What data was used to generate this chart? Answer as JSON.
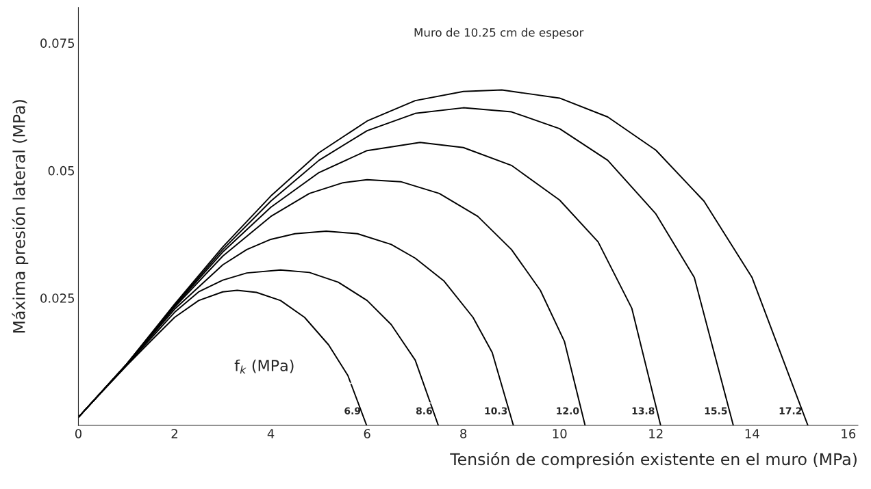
{
  "chart_data": {
    "type": "line",
    "xlabel": "Tensión de compresión existente en el muro (MPa)",
    "ylabel": "Máxima presión lateral (MPa)",
    "annotations": [
      "Muro de 10.25 cm de espesor",
      "f$_{k}$ (MPa)"
    ],
    "xlim": [
      0,
      16.2
    ],
    "ylim": [
      0,
      0.082
    ],
    "xticks": [
      0,
      2,
      4,
      6,
      8,
      10,
      12,
      14,
      16
    ],
    "yticks": [
      0.025,
      0.05,
      0.075
    ],
    "grid": false,
    "legend": false,
    "marker": "none",
    "line_style": "solid",
    "series": [
      {
        "name": "6.9",
        "color": "#000000",
        "x": [
          0,
          0.5,
          1,
          1.5,
          2,
          2.5,
          3,
          3.3,
          3.7,
          4.2,
          4.7,
          5.2,
          5.6,
          5.99
        ],
        "values": [
          0.0016,
          0.0067,
          0.0117,
          0.0165,
          0.0212,
          0.0245,
          0.0262,
          0.0265,
          0.0261,
          0.0245,
          0.0212,
          0.0158,
          0.0098,
          0
        ]
      },
      {
        "name": "8.6",
        "color": "#000000",
        "x": [
          0,
          1,
          2,
          2.5,
          3,
          3.5,
          4.2,
          4.8,
          5.4,
          6,
          6.5,
          7,
          7.48
        ],
        "values": [
          0.0016,
          0.0118,
          0.0222,
          0.0262,
          0.0285,
          0.0299,
          0.0305,
          0.03,
          0.0281,
          0.0245,
          0.0198,
          0.0128,
          0
        ]
      },
      {
        "name": "10.3",
        "color": "#000000",
        "x": [
          0,
          1,
          2,
          3,
          3.5,
          4,
          4.5,
          5.15,
          5.8,
          6.5,
          7,
          7.6,
          8.2,
          8.6,
          9.04
        ],
        "values": [
          0.0016,
          0.0119,
          0.0228,
          0.0315,
          0.0345,
          0.0365,
          0.0376,
          0.0381,
          0.0376,
          0.0355,
          0.0328,
          0.0283,
          0.0212,
          0.0143,
          0
        ]
      },
      {
        "name": "12.0",
        "color": "#000000",
        "x": [
          0,
          1,
          2,
          3,
          4,
          4.8,
          5.5,
          6,
          6.7,
          7.5,
          8.3,
          9,
          9.6,
          10.1,
          10.53
        ],
        "values": [
          0.0016,
          0.012,
          0.0232,
          0.0332,
          0.041,
          0.0455,
          0.0476,
          0.0482,
          0.0478,
          0.0455,
          0.041,
          0.0345,
          0.0265,
          0.0165,
          0
        ]
      },
      {
        "name": "13.8",
        "color": "#000000",
        "x": [
          0,
          1,
          2,
          3,
          4,
          5,
          6,
          7.1,
          8,
          9,
          10,
          10.8,
          11.5,
          12.1
        ],
        "values": [
          0.0016,
          0.012,
          0.0234,
          0.034,
          0.0428,
          0.0496,
          0.0539,
          0.0555,
          0.0545,
          0.051,
          0.0442,
          0.036,
          0.023,
          0
        ]
      },
      {
        "name": "15.5",
        "color": "#000000",
        "x": [
          0,
          1,
          2,
          3,
          4,
          5,
          6,
          7,
          8,
          9,
          10,
          11,
          12,
          12.8,
          13.61
        ],
        "values": [
          0.0016,
          0.012,
          0.0236,
          0.0345,
          0.044,
          0.052,
          0.0578,
          0.0612,
          0.0623,
          0.0615,
          0.0582,
          0.052,
          0.0415,
          0.029,
          0
        ]
      },
      {
        "name": "17.2",
        "color": "#000000",
        "x": [
          0,
          1,
          2,
          3,
          4,
          5,
          6,
          7,
          8,
          8.8,
          10,
          11,
          12,
          13,
          14,
          15.16
        ],
        "values": [
          0.0016,
          0.012,
          0.0238,
          0.035,
          0.045,
          0.0535,
          0.0597,
          0.0637,
          0.0655,
          0.0658,
          0.0642,
          0.0605,
          0.054,
          0.044,
          0.029,
          0
        ]
      }
    ]
  }
}
